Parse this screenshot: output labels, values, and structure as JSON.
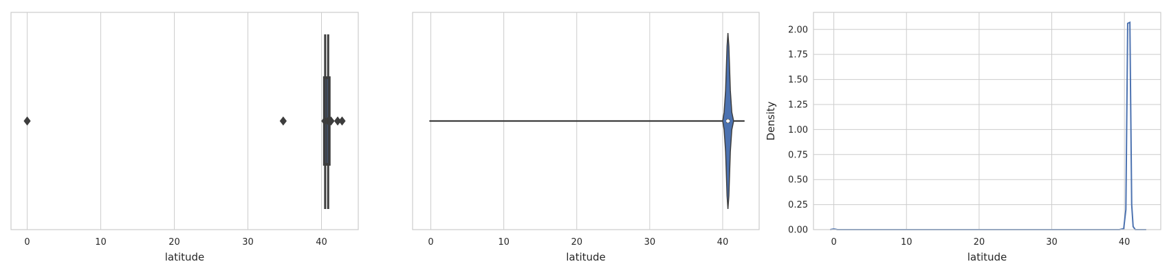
{
  "chart_data": [
    {
      "type": "boxplot",
      "orientation": "horizontal",
      "xlabel": "latitude",
      "xlim": [
        -2.2,
        45
      ],
      "xticks": [
        0,
        10,
        20,
        30,
        40
      ],
      "grid": true,
      "box": {
        "q1": 40.68,
        "median": 40.72,
        "q3": 40.77,
        "whisker_low": 40.5,
        "whisker_high": 40.91
      },
      "outliers": [
        0,
        34.8,
        40.45,
        40.95,
        41.1,
        41.3,
        42.2,
        42.8
      ],
      "color": "#4c72b0",
      "line_color": "#3d3d3d"
    },
    {
      "type": "violin",
      "orientation": "horizontal",
      "xlabel": "latitude",
      "xlim": [
        -2.5,
        45
      ],
      "xticks": [
        0,
        10,
        20,
        30,
        40
      ],
      "grid": true,
      "whisker_low": -0.2,
      "whisker_high": 43.0,
      "median": 40.72,
      "box": {
        "q1": 40.68,
        "q3": 40.77
      },
      "violin_profile": [
        [
          40.0,
          0.0
        ],
        [
          40.2,
          0.1
        ],
        [
          40.4,
          0.35
        ],
        [
          40.6,
          0.85
        ],
        [
          40.72,
          1.0
        ],
        [
          40.85,
          0.85
        ],
        [
          41.05,
          0.35
        ],
        [
          41.25,
          0.1
        ],
        [
          41.5,
          0.0
        ]
      ],
      "color": "#4c72b0",
      "line_color": "#3d3d3d"
    },
    {
      "type": "line",
      "subtype": "kde",
      "xlabel": "latitude",
      "ylabel": "Density",
      "xlim": [
        -2.8,
        45
      ],
      "ylim": [
        0,
        2.17
      ],
      "xticks": [
        0,
        10,
        20,
        30,
        40
      ],
      "yticks": [
        "0.00",
        "0.25",
        "0.50",
        "0.75",
        "1.00",
        "1.25",
        "1.50",
        "1.75",
        "2.00"
      ],
      "grid": true,
      "series": [
        {
          "x": [
            -0.5,
            -0.2,
            0.0,
            0.2,
            0.5,
            39.3,
            39.9,
            40.2,
            40.45,
            40.75,
            41.0,
            41.2,
            41.5,
            42.0,
            43.0
          ],
          "y": [
            0.0,
            0.004,
            0.006,
            0.004,
            0.0,
            0.0,
            0.01,
            0.2,
            2.06,
            2.07,
            0.25,
            0.03,
            0.0,
            0.0,
            0.0
          ]
        }
      ],
      "color": "#4c72b0"
    }
  ]
}
